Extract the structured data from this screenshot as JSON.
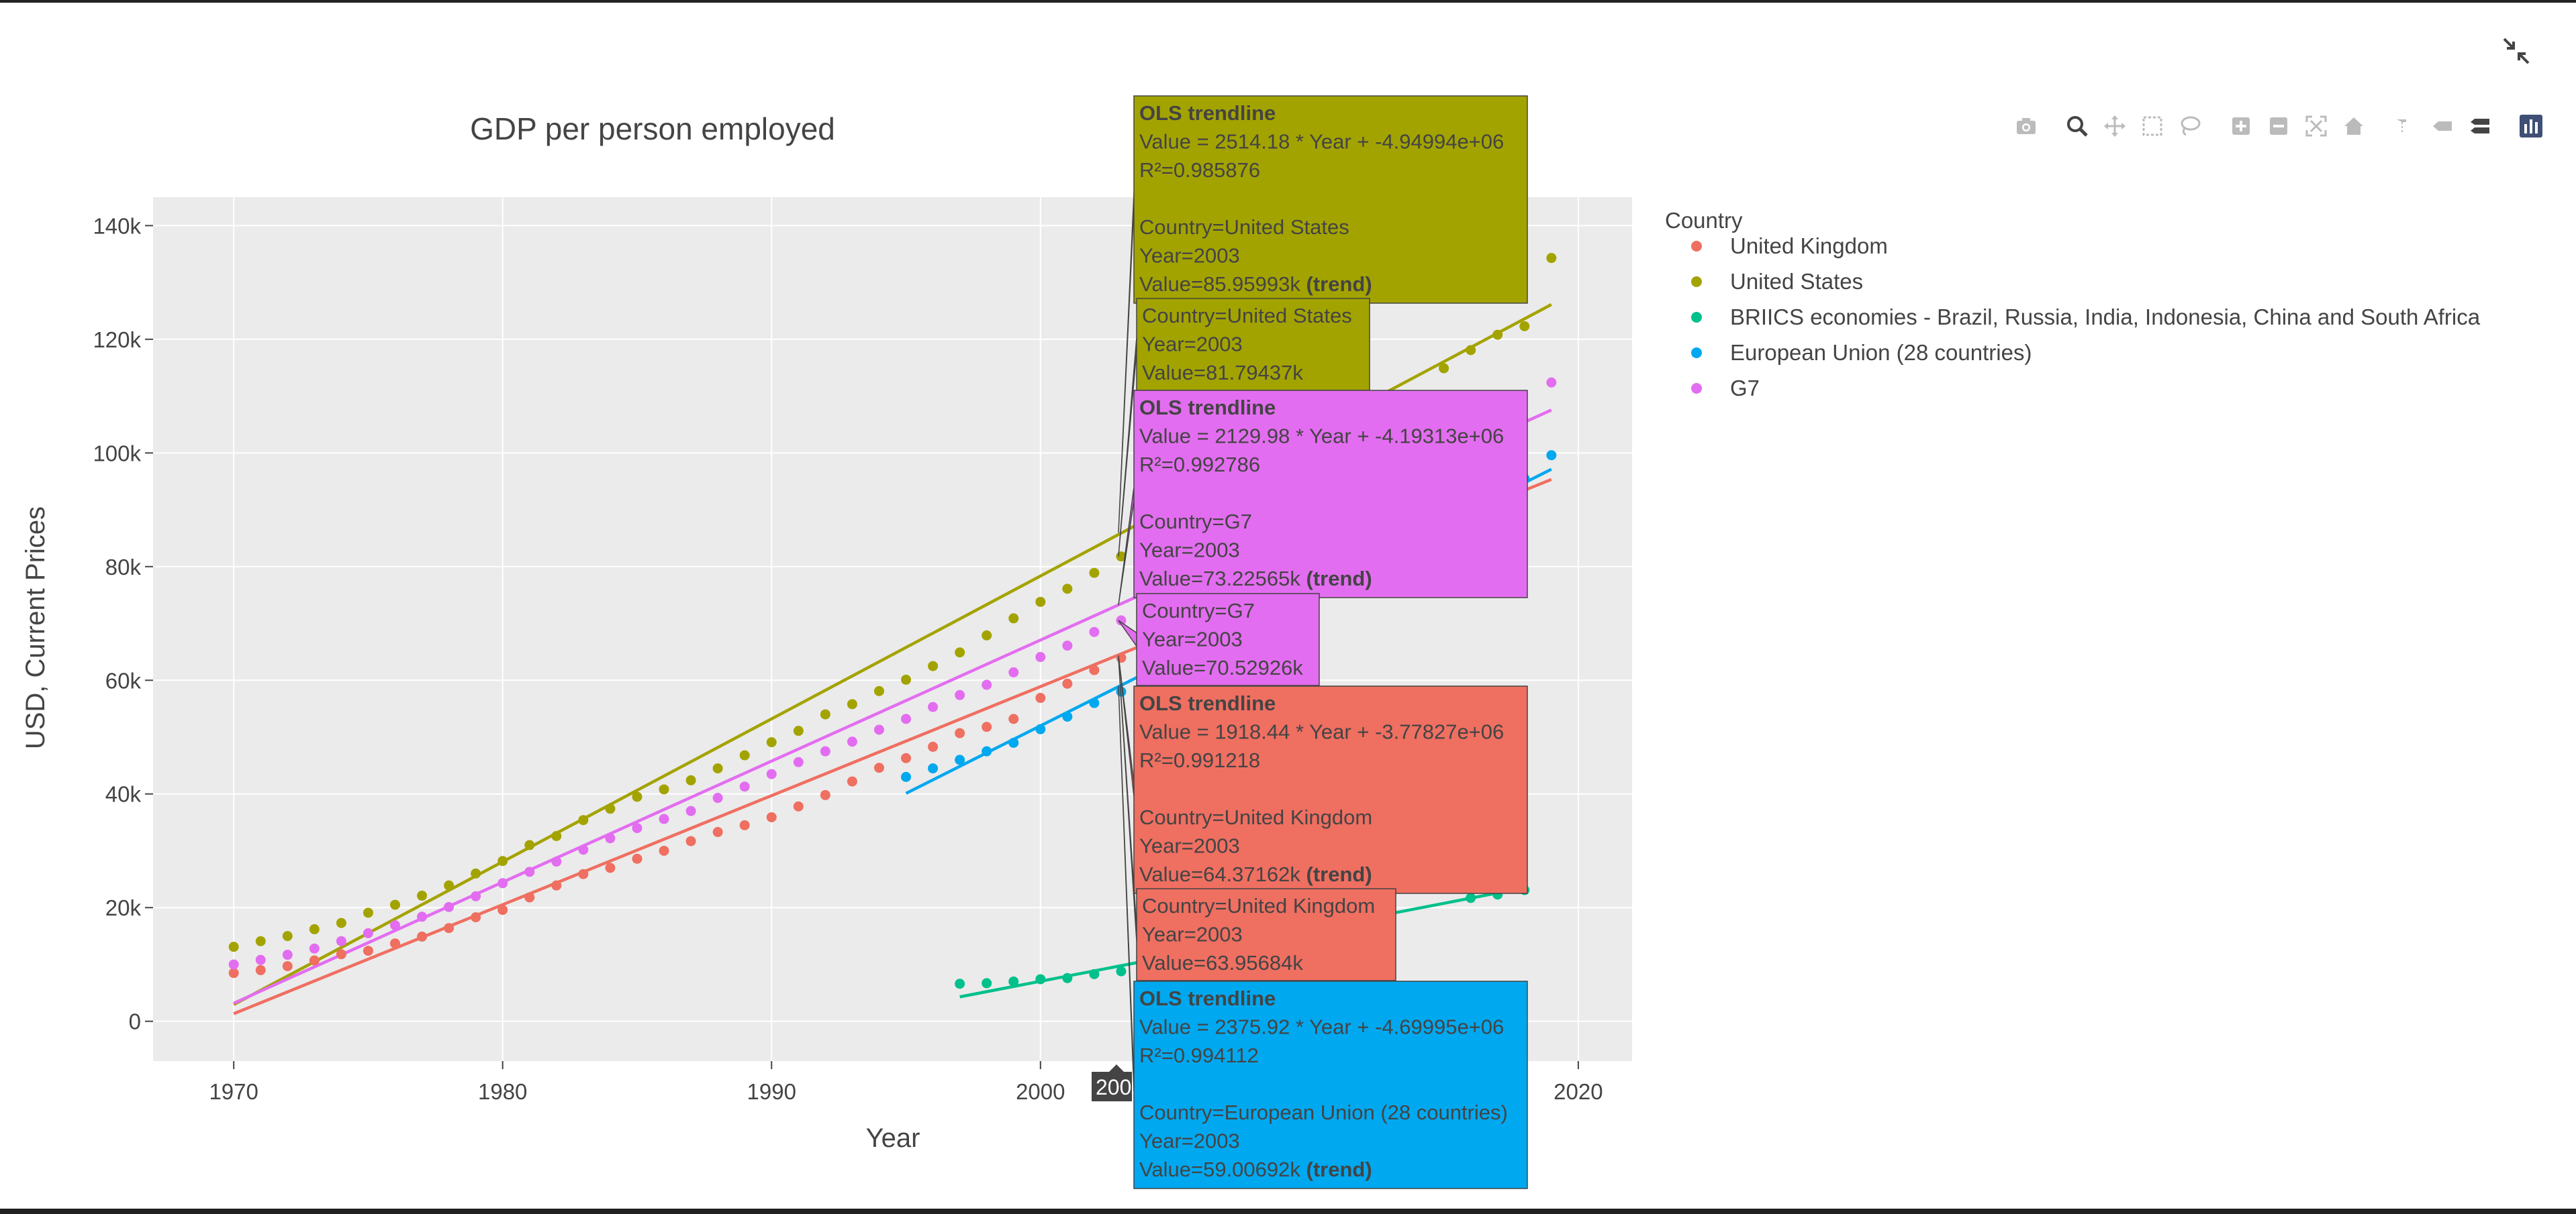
{
  "ui": {
    "collapse_icon": "collapse-arrows-icon",
    "modebar": [
      "camera-icon",
      "zoom-icon",
      "pan-icon",
      "box-select-icon",
      "lasso-icon",
      "zoom-in-icon",
      "zoom-out-icon",
      "autoscale-icon",
      "home-icon",
      "spike-lines-icon",
      "hover-closest-icon",
      "hover-compare-icon",
      "plotly-logo-icon"
    ]
  },
  "colors": {
    "United Kingdom": "#ef6f61",
    "United States": "#a3a300",
    "BRIICS economies - Brazil, Russia, India, Indonesia, China and South Africa": "#00c08b",
    "European Union (28 countries)": "#00a8f0",
    "G7": "#e36df0",
    "plot_bg": "#ebebeb"
  },
  "chart_data": {
    "type": "scatter",
    "title": "GDP per person employed",
    "xlabel": "Year",
    "ylabel": "USD, Current Prices",
    "xlim": [
      1967,
      2022
    ],
    "ylim": [
      -7000,
      145000
    ],
    "xticks": [
      1970,
      1980,
      1990,
      2000,
      2010,
      2020
    ],
    "xtick_labels": [
      "1970",
      "1980",
      "1990",
      "2000",
      "",
      "2020"
    ],
    "yticks": [
      0,
      20000,
      40000,
      60000,
      80000,
      100000,
      120000,
      140000
    ],
    "ytick_labels": [
      "0",
      "20k",
      "40k",
      "60k",
      "80k",
      "100k",
      "120k",
      "140k"
    ],
    "grid": true,
    "legend_title": "Country",
    "legend_position": "right",
    "spike_label": "200",
    "series": [
      {
        "name": "United Kingdom",
        "x": [
          1970,
          1971,
          1972,
          1973,
          1974,
          1975,
          1976,
          1977,
          1978,
          1979,
          1980,
          1981,
          1982,
          1983,
          1984,
          1985,
          1986,
          1987,
          1988,
          1989,
          1990,
          1991,
          1992,
          1993,
          1994,
          1995,
          1996,
          1997,
          1998,
          1999,
          2000,
          2001,
          2002,
          2003
        ],
        "y": [
          8500,
          9000,
          9700,
          10700,
          11800,
          12400,
          13700,
          14900,
          16400,
          18300,
          19600,
          21800,
          23900,
          25900,
          27000,
          28600,
          30000,
          31700,
          33300,
          34500,
          35900,
          37800,
          39800,
          42200,
          44600,
          46300,
          48300,
          50700,
          51800,
          53200,
          56900,
          59400,
          61800,
          63957
        ],
        "trend": {
          "x": [
            1970,
            2019
          ],
          "y": [
            1337,
            95340
          ]
        }
      },
      {
        "name": "United States",
        "x": [
          1970,
          1971,
          1972,
          1973,
          1974,
          1975,
          1976,
          1977,
          1978,
          1979,
          1980,
          1981,
          1982,
          1983,
          1984,
          1985,
          1986,
          1987,
          1988,
          1989,
          1990,
          1991,
          1992,
          1993,
          1994,
          1995,
          1996,
          1997,
          1998,
          1999,
          2000,
          2001,
          2002,
          2003,
          2015,
          2016,
          2017,
          2018,
          2019
        ],
        "y": [
          13100,
          14100,
          15000,
          16200,
          17300,
          19100,
          20500,
          22100,
          23900,
          26000,
          28200,
          31000,
          32600,
          35400,
          37400,
          39500,
          40800,
          42400,
          44500,
          46800,
          49100,
          51100,
          54000,
          55800,
          58100,
          60100,
          62500,
          64900,
          67900,
          70900,
          73800,
          76100,
          78900,
          81794,
          114900,
          118100,
          120800,
          122300,
          134300
        ],
        "trend": {
          "x": [
            1970,
            2019
          ],
          "y": [
            2934,
            126113
          ]
        }
      },
      {
        "name": "BRIICS economies - Brazil, Russia, India, Indonesia, China and South Africa",
        "x": [
          1997,
          1998,
          1999,
          2000,
          2001,
          2002,
          2003,
          2016,
          2017,
          2018
        ],
        "y": [
          6600,
          6700,
          7000,
          7400,
          7600,
          8300,
          8800,
          21700,
          22300,
          23100
        ],
        "trend": {
          "x": [
            1997,
            2018
          ],
          "y": [
            4300,
            23500
          ]
        }
      },
      {
        "name": "European Union (28 countries)",
        "x": [
          1995,
          1996,
          1997,
          1998,
          1999,
          2000,
          2001,
          2002,
          2003,
          2018,
          2019
        ],
        "y": [
          43000,
          44500,
          46000,
          47500,
          49000,
          51400,
          53600,
          56000,
          58000,
          95500,
          99600
        ],
        "trend": {
          "x": [
            1995,
            2019
          ],
          "y": [
            40106,
            97128
          ]
        }
      },
      {
        "name": "G7",
        "x": [
          1970,
          1971,
          1972,
          1973,
          1974,
          1975,
          1976,
          1977,
          1978,
          1979,
          1980,
          1981,
          1982,
          1983,
          1984,
          1985,
          1986,
          1987,
          1988,
          1989,
          1990,
          1991,
          1992,
          1993,
          1994,
          1995,
          1996,
          1997,
          1998,
          1999,
          2000,
          2001,
          2002,
          2003,
          2019
        ],
        "y": [
          10000,
          10800,
          11700,
          12800,
          14100,
          15500,
          16900,
          18400,
          20100,
          22000,
          24300,
          26300,
          28100,
          30200,
          32200,
          34000,
          35600,
          37000,
          39300,
          41300,
          43500,
          45600,
          47500,
          49200,
          51300,
          53200,
          55300,
          57400,
          59200,
          61400,
          64100,
          66100,
          68500,
          70529,
          112400
        ],
        "trend": {
          "x": [
            1970,
            2019
          ],
          "y": [
            3179,
            107548
          ]
        }
      }
    ],
    "hover": {
      "trend_header": "OLS trendline",
      "boxes": [
        {
          "series": "United States",
          "kind": "trend",
          "lines": [
            "Value = 2514.18 * Year + -4.94994e+06",
            "R²=0.985876",
            "",
            "Country=United States",
            "Year=2003"
          ],
          "value_line": "Value=85.95993k",
          "suffix": "(trend)"
        },
        {
          "series": "United States",
          "kind": "point",
          "lines": [
            "Country=United States",
            "Year=2003",
            "Value=81.79437k"
          ]
        },
        {
          "series": "G7",
          "kind": "trend",
          "lines": [
            "Value = 2129.98 * Year + -4.19313e+06",
            "R²=0.992786",
            "",
            "Country=G7",
            "Year=2003"
          ],
          "value_line": "Value=73.22565k",
          "suffix": "(trend)"
        },
        {
          "series": "G7",
          "kind": "point",
          "lines": [
            "Country=G7",
            "Year=2003",
            "Value=70.52926k"
          ]
        },
        {
          "series": "United Kingdom",
          "kind": "trend",
          "lines": [
            "Value = 1918.44 * Year + -3.77827e+06",
            "R²=0.991218",
            "",
            "Country=United Kingdom",
            "Year=2003"
          ],
          "value_line": "Value=64.37162k",
          "suffix": "(trend)"
        },
        {
          "series": "United Kingdom",
          "kind": "point",
          "lines": [
            "Country=United Kingdom",
            "Year=2003",
            "Value=63.95684k"
          ]
        },
        {
          "series": "European Union (28 countries)",
          "kind": "trend",
          "lines": [
            "Value = 2375.92 * Year + -4.69995e+06",
            "R²=0.994112",
            "",
            "Country=European Union (28 countries)",
            "Year=2003"
          ],
          "value_line": "Value=59.00692k",
          "suffix": "(trend)"
        }
      ]
    }
  }
}
